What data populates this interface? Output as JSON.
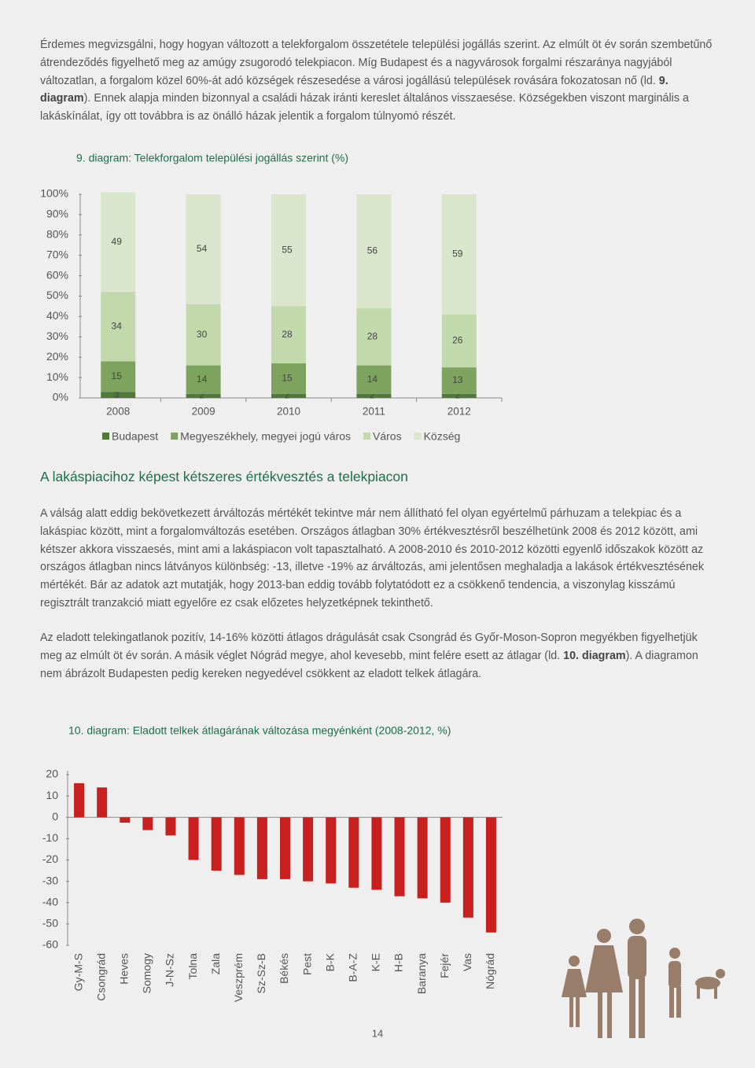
{
  "intro": {
    "before": "Érdemes megvizsgálni, hogy hogyan változott a telekforgalom összetétele települési jogállás szerint. Az elmúlt öt év során szembetűnő átrendeződés figyelhető meg az amúgy zsugorodó telekpiacon. Míg Budapest és a nagyvárosok forgalmi részaránya nagyjából változatlan, a forgalom közel 60%-át adó községek részesedése a városi jogállású települések rovására fokozatosan nő (ld. ",
    "bold": "9. diagram",
    "after": "). Ennek alapja minden bizonnyal a családi házak iránti kereslet általános visszaesése. Községekben viszont marginális a lakáskínálat, így ott továbbra is az önálló házak jelentik a forgalom túlnyomó részét."
  },
  "heading": "A lakáspiacihoz képest kétszeres értékvesztés a telekpiacon",
  "paragraph2": "A válság alatt eddig bekövetkezett árváltozás mértékét tekintve már nem állítható fel olyan egyértelmű párhuzam a telekpiac és a lakáspiac között, mint a forgalomváltozás esetében. Országos átlagban 30% értékvesztésről beszélhetünk 2008 és 2012 között, ami kétszer akkora visszaesés, mint ami a lakáspiacon volt tapasztalható. A 2008-2010 és 2010-2012 közötti egyenlő időszakok között az országos átlagban nincs látványos különbség: -13, illetve -19% az árváltozás, ami jelentősen meghaladja a lakások értékvesztésének mértékét. Bár az adatok azt mutatják, hogy 2013-ban eddig tovább folytatódott ez a csökkenő tendencia, a viszonylag kisszámú regisztrált tranzakció miatt egyelőre ez csak előzetes helyzetképnek tekinthető.",
  "paragraph3": {
    "before": "Az eladott telekingatlanok pozitív, 14-16% közötti átlagos drágulását csak Csongrád és Győr-Moson-Sopron megyékben figyelhetjük meg az elmúlt öt év során. A másik véglet Nógrád megye, ahol kevesebb, mint felére esett az átlagar (ld. ",
    "bold": "10. diagram",
    "after": "). A diagramon nem ábrázolt Budapesten pedig kereken negyedével csökkent az eladott telkek átlagára."
  },
  "page_number": "14",
  "chart_data": [
    {
      "type": "stacked_bar",
      "title": "9. diagram: Telekforgalom települési jogállás szerint (%)",
      "categories": [
        "2008",
        "2009",
        "2010",
        "2011",
        "2012"
      ],
      "series": [
        {
          "name": "Budapest",
          "color": "#4f7a3c",
          "values": [
            3,
            2,
            2,
            2,
            2
          ]
        },
        {
          "name": "Megyeszékhely, megyei jogú város",
          "color": "#7ea35e",
          "values": [
            15,
            14,
            15,
            14,
            13
          ]
        },
        {
          "name": "Város",
          "color": "#c2d9ac",
          "values": [
            34,
            30,
            28,
            28,
            26
          ]
        },
        {
          "name": "Község",
          "color": "#d9e6cb",
          "values": [
            49,
            54,
            55,
            56,
            59
          ]
        }
      ],
      "ylim": [
        0,
        100
      ],
      "yticks": [
        {
          "value": 0,
          "label": "0%"
        },
        {
          "value": 10,
          "label": "10%"
        },
        {
          "value": 20,
          "label": "20%"
        },
        {
          "value": 30,
          "label": "30%"
        },
        {
          "value": 40,
          "label": "40%"
        },
        {
          "value": 50,
          "label": "50%"
        },
        {
          "value": 60,
          "label": "60%"
        },
        {
          "value": 70,
          "label": "70%"
        },
        {
          "value": 80,
          "label": "80%"
        },
        {
          "value": 90,
          "label": "90%"
        },
        {
          "value": 100,
          "label": "100%"
        }
      ],
      "legend": "bottom"
    },
    {
      "type": "bar",
      "title": "10. diagram: Eladott telkek átlagárának változása megyénként (2008-2012, %)",
      "categories": [
        "Gy-M-S",
        "Csongrád",
        "Heves",
        "Somogy",
        "J-N-Sz",
        "Tolna",
        "Zala",
        "Veszprém",
        "Sz-Sz-B",
        "Békés",
        "Pest",
        "B-K",
        "B-A-Z",
        "K-E",
        "H-B",
        "Baranya",
        "Fejér",
        "Vas",
        "Nógrád"
      ],
      "values": [
        16,
        14,
        -2.5,
        -6,
        -8.5,
        -20,
        -25,
        -27,
        -29,
        -29,
        -30,
        -31,
        -33,
        -34,
        -37,
        -38,
        -40,
        -47,
        -54
      ],
      "color": "#c8201e",
      "ylim": [
        -60,
        20
      ],
      "yticks": [
        20,
        10,
        0,
        -10,
        -20,
        -30,
        -40,
        -50,
        -60
      ]
    }
  ]
}
